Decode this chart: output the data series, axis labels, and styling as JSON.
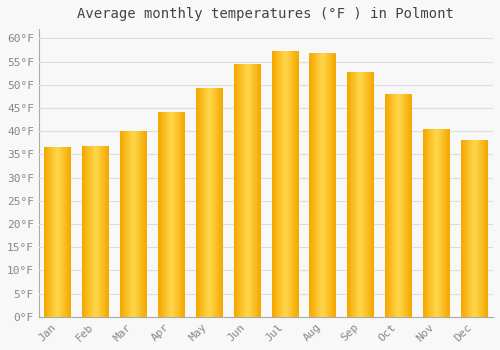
{
  "months": [
    "Jan",
    "Feb",
    "Mar",
    "Apr",
    "May",
    "Jun",
    "Jul",
    "Aug",
    "Sep",
    "Oct",
    "Nov",
    "Dec"
  ],
  "values": [
    36.5,
    36.7,
    40.0,
    44.0,
    49.2,
    54.5,
    57.2,
    56.7,
    52.7,
    48.0,
    40.5,
    38.0
  ],
  "bar_color_main": "#FFA500",
  "bar_color_light": "#FFD050",
  "title": "Average monthly temperatures (°F ) in Polmont",
  "ylim": [
    0,
    62
  ],
  "yticks": [
    0,
    5,
    10,
    15,
    20,
    25,
    30,
    35,
    40,
    45,
    50,
    55,
    60
  ],
  "ytick_labels": [
    "0°F",
    "5°F",
    "10°F",
    "15°F",
    "20°F",
    "25°F",
    "30°F",
    "35°F",
    "40°F",
    "45°F",
    "50°F",
    "55°F",
    "60°F"
  ],
  "background_color": "#F8F8F8",
  "grid_color": "#DDDDDD",
  "title_fontsize": 10,
  "tick_fontsize": 8,
  "tick_color": "#888888",
  "bar_width": 0.7
}
